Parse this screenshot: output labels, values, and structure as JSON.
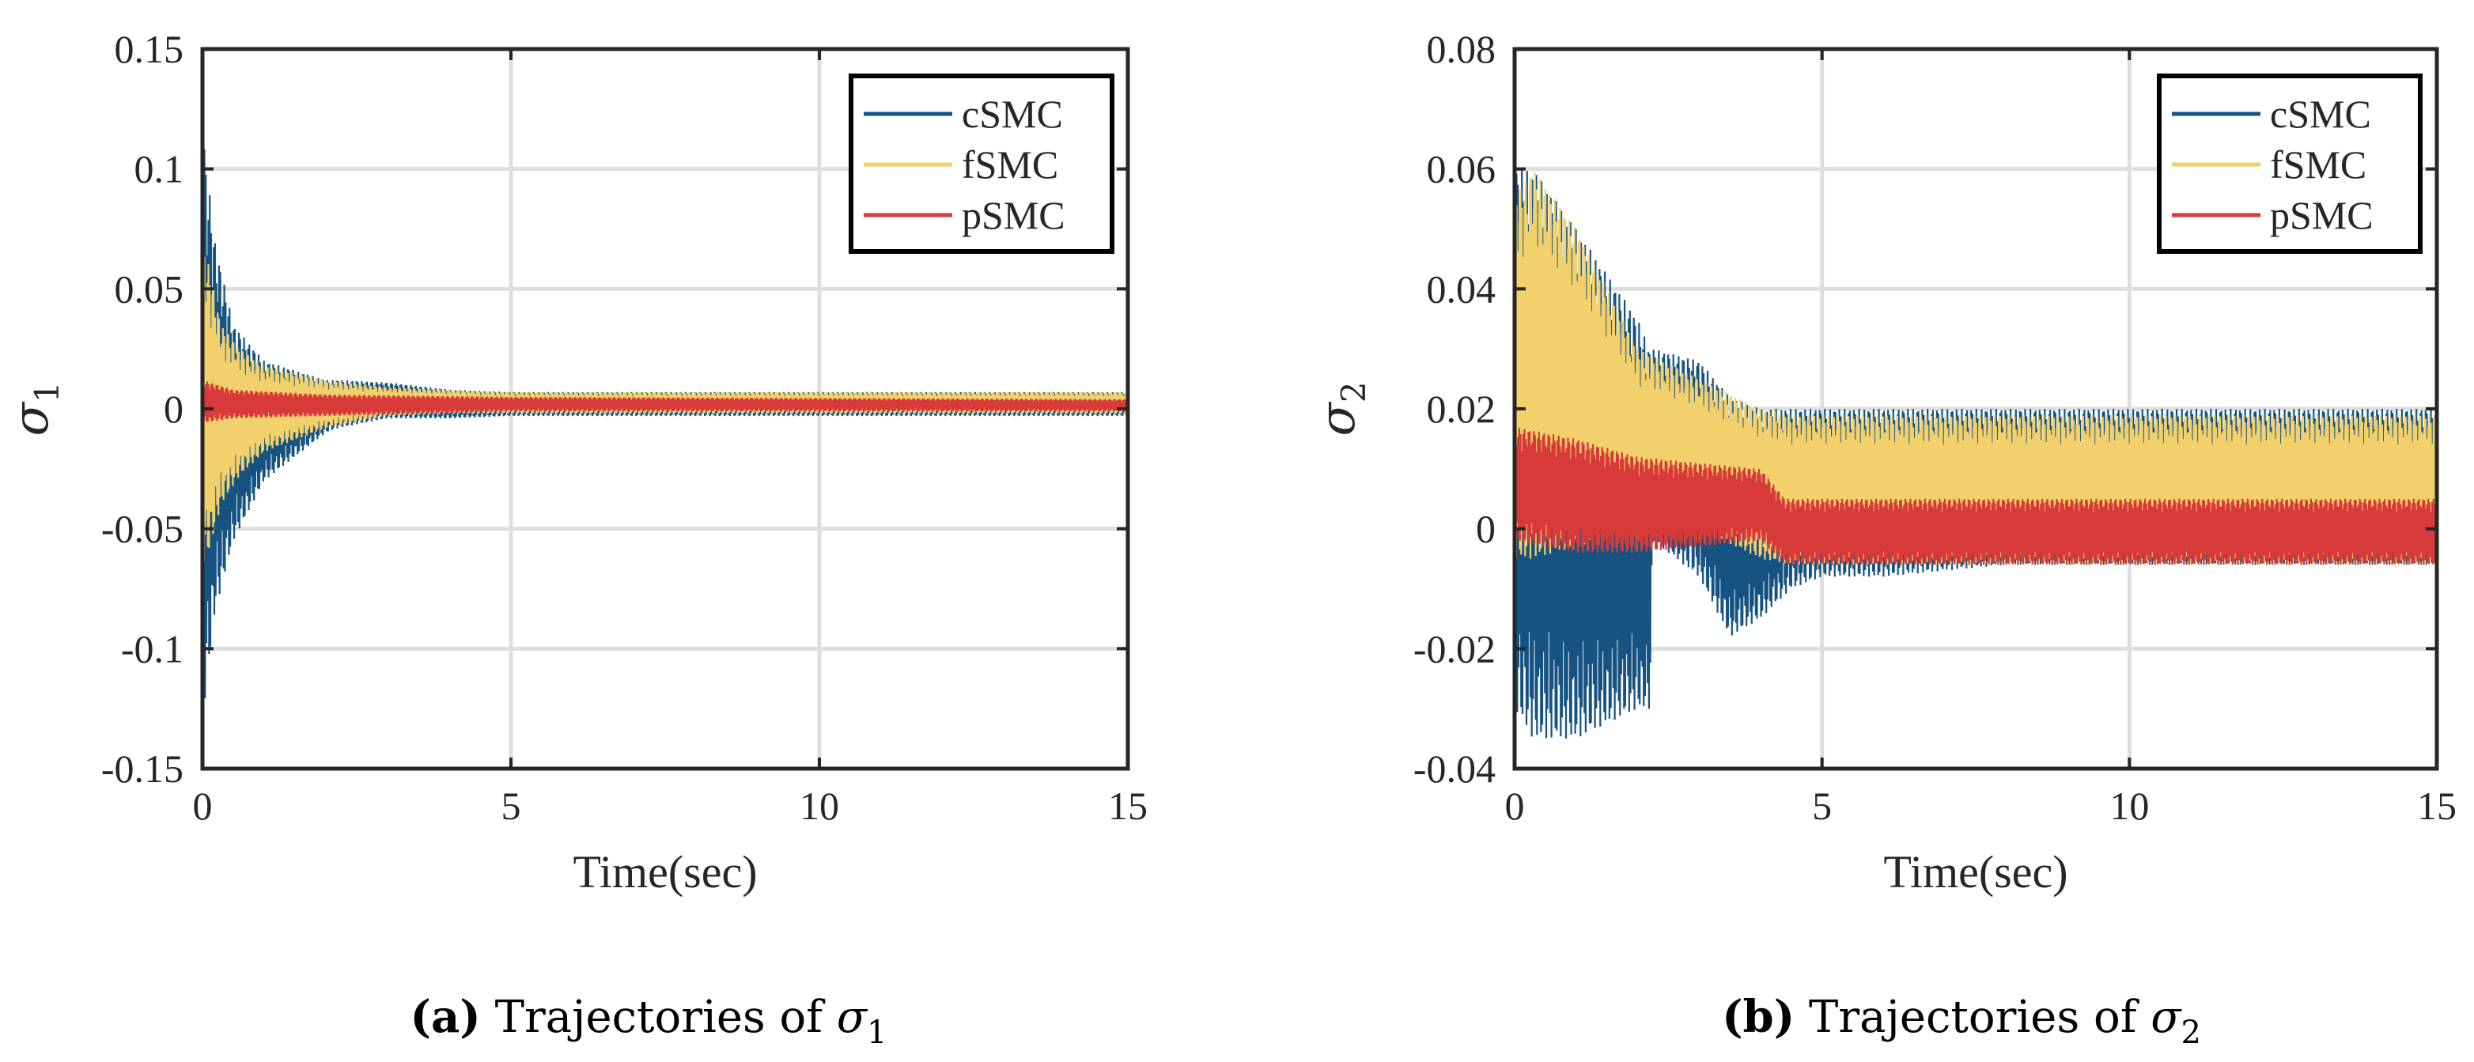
{
  "colors": {
    "cSMC": "#165382",
    "fSMC": "#f2d06b",
    "pSMC": "#d83a3a",
    "grid": "#dedede",
    "axis": "#262626"
  },
  "chart_data": [
    {
      "id": "a",
      "type": "line",
      "caption_letter": "(a)",
      "caption_text": "Trajectories of ",
      "caption_symbol": "σ",
      "caption_sub": "1",
      "xlabel": "Time(sec)",
      "ylabel": "σ",
      "ylabel_sub": "1",
      "xlim": [
        0,
        15
      ],
      "ylim": [
        -0.15,
        0.15
      ],
      "xticks": [
        0,
        5,
        10,
        15
      ],
      "xtick_labels": [
        "0",
        "5",
        "10",
        "15"
      ],
      "yticks": [
        0.15,
        0.1,
        0.05,
        0,
        -0.05,
        -0.1,
        -0.15
      ],
      "ytick_labels": [
        "0.15",
        "0.1",
        "0.05",
        "0",
        "-0.05",
        "-0.1",
        "-0.15"
      ],
      "grid": true,
      "legend": "top-right",
      "series": [
        {
          "name": "cSMC",
          "envelope": {
            "t": [
              0,
              0.05,
              0.2,
              0.5,
              1,
              2,
              2.2,
              3,
              4,
              5,
              8,
              15
            ],
            "upper": [
              0.12,
              0.105,
              0.07,
              0.035,
              0.02,
              0.012,
              0.012,
              0.011,
              0.008,
              0.007,
              0.007,
              0.007
            ],
            "lower": [
              -0.127,
              -0.12,
              -0.085,
              -0.055,
              -0.03,
              -0.01,
              -0.008,
              -0.004,
              -0.004,
              -0.003,
              -0.003,
              -0.003
            ]
          }
        },
        {
          "name": "fSMC",
          "envelope": {
            "t": [
              0,
              0.1,
              0.3,
              0.6,
              1,
              2,
              3,
              4,
              5,
              8,
              15
            ],
            "upper": [
              0.07,
              0.06,
              0.035,
              0.025,
              0.018,
              0.012,
              0.009,
              0.008,
              0.007,
              0.007,
              0.007
            ],
            "lower": [
              -0.065,
              -0.06,
              -0.04,
              -0.028,
              -0.018,
              -0.008,
              -0.003,
              -0.002,
              -0.002,
              -0.002,
              -0.002
            ]
          }
        },
        {
          "name": "pSMC",
          "envelope": {
            "t": [
              0,
              0.5,
              2,
              5,
              15
            ],
            "upper": [
              0.012,
              0.008,
              0.006,
              0.005,
              0.004
            ],
            "lower": [
              -0.006,
              -0.004,
              -0.003,
              -0.001,
              -0.001
            ]
          }
        }
      ]
    },
    {
      "id": "b",
      "type": "line",
      "caption_letter": "(b)",
      "caption_text": "Trajectories of ",
      "caption_symbol": "σ",
      "caption_sub": "2",
      "xlabel": "Time(sec)",
      "ylabel": "σ",
      "ylabel_sub": "2",
      "xlim": [
        0,
        15
      ],
      "ylim": [
        -0.04,
        0.08
      ],
      "xticks": [
        0,
        5,
        10,
        15
      ],
      "xtick_labels": [
        "0",
        "5",
        "10",
        "15"
      ],
      "yticks": [
        0.08,
        0.06,
        0.04,
        0.02,
        0,
        -0.02,
        -0.04
      ],
      "ytick_labels": [
        "0.08",
        "0.06",
        "0.04",
        "0.02",
        "0",
        "-0.02",
        "-0.04"
      ],
      "grid": true,
      "legend": "top-right",
      "series": [
        {
          "name": "cSMC",
          "envelope": {
            "t": [
              0,
              0.3,
              1,
              2,
              2.2,
              2.25,
              3,
              3.5,
              4,
              4.5,
              5,
              6,
              8,
              15
            ],
            "upper": [
              0.06,
              0.06,
              0.05,
              0.035,
              0.03,
              0.03,
              0.028,
              0.022,
              0.02,
              0.02,
              0.02,
              0.02,
              0.02,
              0.02
            ],
            "lower": [
              -0.03,
              -0.035,
              -0.035,
              -0.03,
              -0.03,
              -0.002,
              -0.008,
              -0.018,
              -0.015,
              -0.01,
              -0.008,
              -0.008,
              -0.006,
              -0.006
            ]
          }
        },
        {
          "name": "fSMC",
          "envelope": {
            "t": [
              0,
              0.3,
              1,
              2,
              3,
              4,
              4.5,
              15
            ],
            "upper": [
              0.055,
              0.06,
              0.05,
              0.03,
              0.025,
              0.02,
              0.019,
              0.019
            ],
            "lower": [
              -0.005,
              -0.005,
              -0.003,
              -0.001,
              0.0,
              -0.005,
              -0.006,
              -0.006
            ]
          }
        },
        {
          "name": "pSMC",
          "envelope": {
            "t": [
              0,
              1,
              2,
              3,
              4,
              4.4,
              5,
              15
            ],
            "upper": [
              0.017,
              0.015,
              0.012,
              0.011,
              0.01,
              0.005,
              0.005,
              0.005
            ],
            "lower": [
              -0.002,
              -0.004,
              -0.004,
              -0.003,
              -0.002,
              -0.006,
              -0.006,
              -0.006
            ]
          }
        }
      ]
    }
  ]
}
